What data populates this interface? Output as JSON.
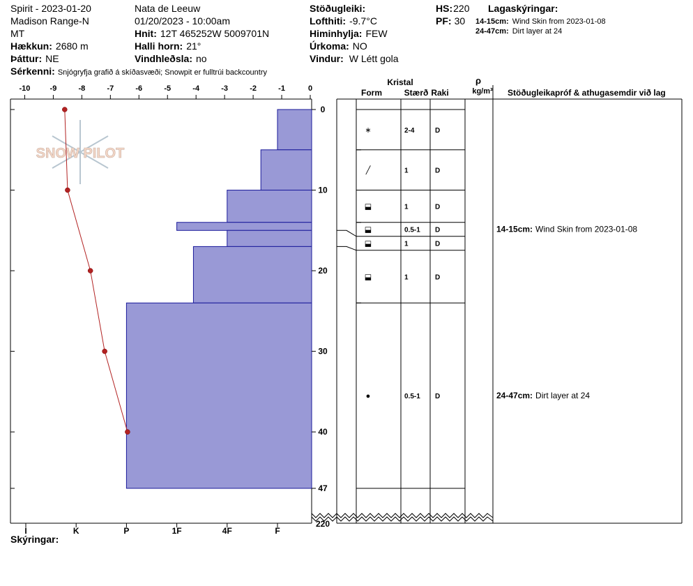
{
  "header": {
    "site": "Spirit - 2023-01-20",
    "range": "Madison Range-N",
    "state": "MT",
    "elevation": {
      "label": "Hækkun:",
      "value": "2680 m"
    },
    "aspect": {
      "label": "Þáttur:",
      "value": "NE"
    },
    "features": {
      "label": "Sérkenni:",
      "value": "Snjógryfja grafið á skíðasvæði; Snowpit er fulltrúi backcountry"
    },
    "observer": "Nata de Leeuw",
    "datetime": "01/20/2023 - 10:00am",
    "coords": {
      "label": "Hnit:",
      "value": "12T 465252W 5009701N"
    },
    "slope": {
      "label": "Halli horn:",
      "value": "21°"
    },
    "wind_loading": {
      "label": "Vindhleðsla:",
      "value": "no"
    },
    "stability": {
      "label": "Stöðugleiki:"
    },
    "air_temp": {
      "label": "Lofthiti:",
      "value": "-9.7°C"
    },
    "sky": {
      "label": "Himinhylja:",
      "value": "FEW"
    },
    "precip": {
      "label": "Úrkoma:",
      "value": "NO"
    },
    "wind": {
      "label": "Vindur:",
      "value": "W Létt gola"
    },
    "hs": {
      "label": "HS:",
      "value": "220"
    },
    "pf": {
      "label": "PF:",
      "value": "30"
    },
    "legend_title": "Lagaskýringar:",
    "legend": [
      {
        "range": "14-15cm:",
        "text": "Wind Skin from 2023-01-08"
      },
      {
        "range": "24-47cm:",
        "text": "Dirt layer at 24"
      }
    ]
  },
  "logo": "SNOW PILOT",
  "footer": "Skýringar:",
  "chart_data": {
    "type": "snowpit",
    "temperature": {
      "depth": [
        0,
        10,
        20,
        30,
        40
      ],
      "values": [
        -8.6,
        -8.5,
        -7.7,
        -7.2,
        -6.4
      ],
      "color": "#b22222"
    },
    "xlim": [
      -10.5,
      0
    ],
    "xticks": [
      -10,
      -9,
      -8,
      -7,
      -6,
      -5,
      -4,
      -3,
      -2,
      -1,
      0
    ],
    "ylim": [
      0,
      47
    ],
    "yticks": [
      0,
      10,
      20,
      30,
      40,
      47
    ],
    "ybreak_tick": 220,
    "hardness_ticks": [
      {
        "value": 6,
        "label": "I"
      },
      {
        "value": 5,
        "label": "K"
      },
      {
        "value": 4,
        "label": "P"
      },
      {
        "value": 3,
        "label": "1F"
      },
      {
        "value": 2,
        "label": "4F"
      },
      {
        "value": 1,
        "label": "F"
      }
    ],
    "bar_color": "#9999d6",
    "layers": [
      {
        "top": 0,
        "bottom": 5,
        "hardness": 1,
        "form": "∗",
        "size": "2-4",
        "wetness": "D"
      },
      {
        "top": 5,
        "bottom": 10,
        "hardness": 1.33,
        "form": "╱",
        "size": "1",
        "wetness": "D"
      },
      {
        "top": 10,
        "bottom": 14,
        "hardness": 2,
        "form": "⬓",
        "size": "1",
        "wetness": "D"
      },
      {
        "top": 14,
        "bottom": 15,
        "hardness": 3,
        "form": "⬓",
        "size": "0.5-1",
        "wetness": "D"
      },
      {
        "top": 15,
        "bottom": 17,
        "hardness": 2,
        "form": "⬓",
        "size": "1",
        "wetness": "D"
      },
      {
        "top": 17,
        "bottom": 24,
        "hardness": 2.67,
        "form": "⬓",
        "size": "1",
        "wetness": "D"
      },
      {
        "top": 24,
        "bottom": 47,
        "hardness": 4,
        "form": "●",
        "size": "0.5-1",
        "wetness": "D"
      }
    ],
    "comments": [
      {
        "layer": 3,
        "range": "14-15cm:",
        "text": "Wind Skin from 2023-01-08"
      },
      {
        "layer": 6,
        "range": "24-47cm:",
        "text": "Dirt layer at 24"
      }
    ],
    "table_headers": {
      "crystal": "Kristal",
      "form": "Form",
      "size": "Stærð",
      "wetness": "Raki",
      "density": "ρ",
      "density_unit": "kg/m³",
      "comments": "Stöðugleikapróf & athugasemdir við lag"
    }
  }
}
